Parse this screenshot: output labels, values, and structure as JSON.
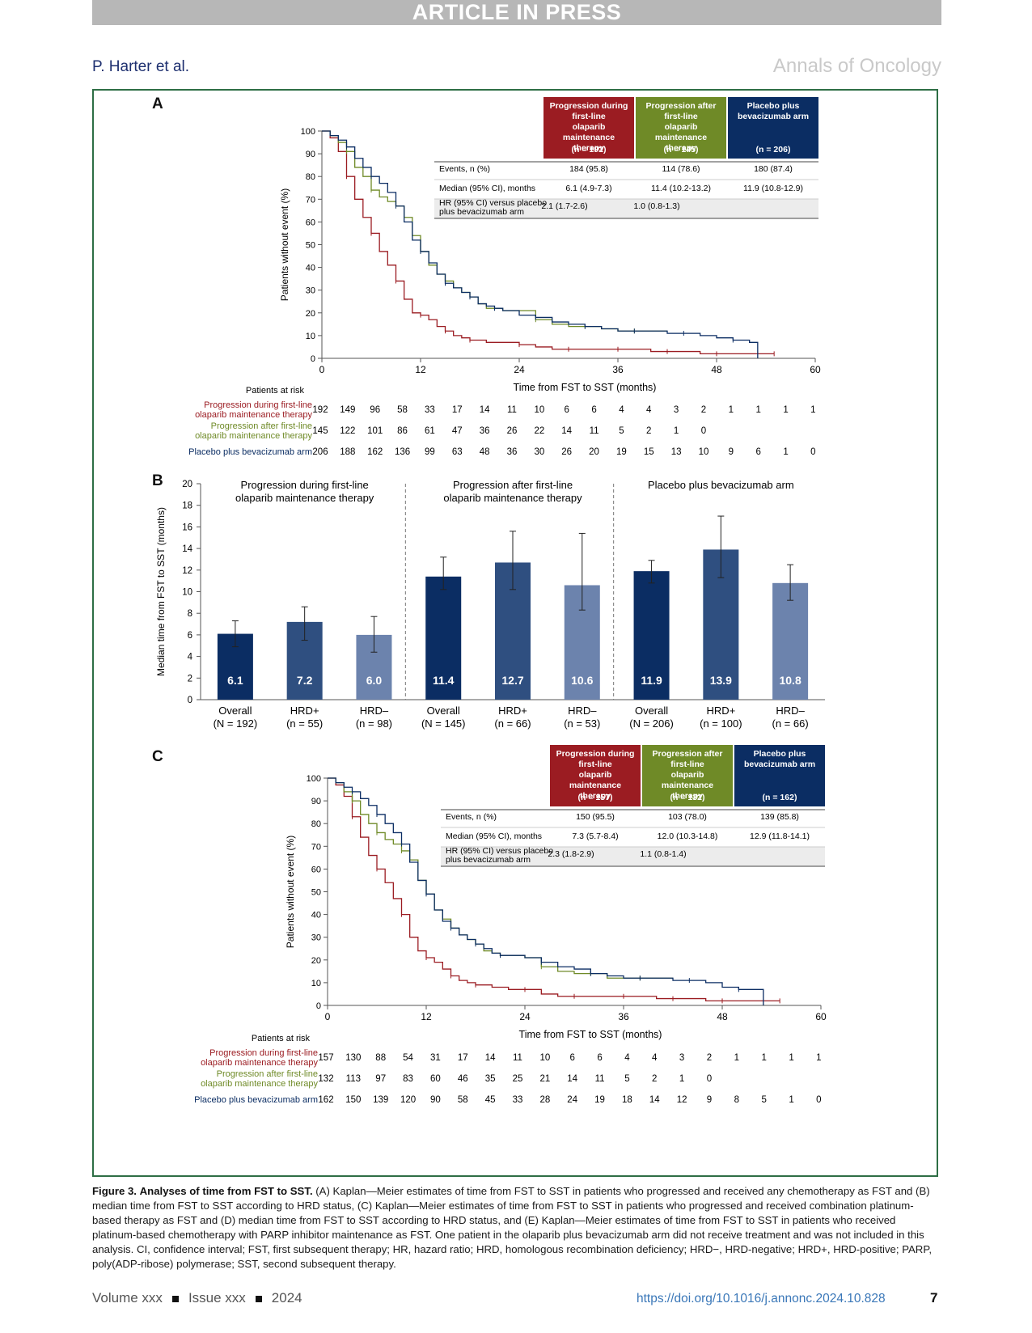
{
  "banner": "ARTICLE IN PRESS",
  "header": {
    "author": "P. Harter et al.",
    "journal": "Annals of Oncology"
  },
  "colors": {
    "red": "#9b1c22",
    "green": "#6f8a27",
    "navy": "#0b2d63",
    "mid": "#2f4f80",
    "light": "#6c83ad"
  },
  "panels": {
    "a": "A",
    "b": "B",
    "c": "C"
  },
  "km_common": {
    "ylabel": "Patients without event (%)",
    "xlabel": "Time from FST to SST (months)",
    "xticks": [
      "0",
      "12",
      "24",
      "36",
      "48",
      "60"
    ],
    "yticks": [
      "0",
      "10",
      "20",
      "30",
      "40",
      "50",
      "60",
      "70",
      "80",
      "90",
      "100"
    ],
    "risk_title": "Patients at risk",
    "row_labels": {
      "ev": "Events, n (%)",
      "med": "Median (95% CI), months",
      "hr": "HR (95% CI) versus placebo plus bevacizumab arm"
    }
  },
  "panel_a": {
    "headers": [
      {
        "title": "Progression during first-line olaparib maintenance therapy",
        "n": "(n = 192)"
      },
      {
        "title": "Progression after first-line olaparib maintenance therapy",
        "n": "(n = 145)"
      },
      {
        "title": "Placebo plus bevacizumab arm",
        "n": "(n = 206)"
      }
    ],
    "events": [
      "184 (95.8)",
      "114 (78.6)",
      "180 (87.4)"
    ],
    "median": [
      "6.1 (4.9-7.3)",
      "11.4 (10.2-13.2)",
      "11.9 (10.8-12.9)"
    ],
    "hr": [
      "2.1 (1.7-2.6)",
      "1.0 (0.8-1.3)",
      ""
    ],
    "risk": [
      {
        "label": [
          "Progression during first-line",
          "olaparib maintenance therapy"
        ],
        "values": [
          "192",
          "149",
          "96",
          "58",
          "33",
          "17",
          "14",
          "11",
          "10",
          "6",
          "6",
          "4",
          "4",
          "3",
          "2",
          "1",
          "1",
          "1",
          "1"
        ]
      },
      {
        "label": [
          "Progression after first-line",
          "olaparib maintenance therapy"
        ],
        "values": [
          "145",
          "122",
          "101",
          "86",
          "61",
          "47",
          "36",
          "26",
          "22",
          "14",
          "11",
          "5",
          "2",
          "1",
          "0"
        ]
      },
      {
        "label": [
          "Placebo plus bevacizumab arm"
        ],
        "values": [
          "206",
          "188",
          "162",
          "136",
          "99",
          "63",
          "48",
          "36",
          "30",
          "26",
          "20",
          "19",
          "15",
          "13",
          "10",
          "9",
          "6",
          "1",
          "0"
        ]
      }
    ]
  },
  "panel_c": {
    "headers": [
      {
        "title": "Progression during first-line olaparib maintenance therapy",
        "n": "(n = 157)"
      },
      {
        "title": "Progression after first-line olaparib maintenance therapy",
        "n": "(n = 132)"
      },
      {
        "title": "Placebo plus bevacizumab arm",
        "n": "(n = 162)"
      }
    ],
    "events": [
      "150 (95.5)",
      "103 (78.0)",
      "139 (85.8)"
    ],
    "median": [
      "7.3 (5.7-8.4)",
      "12.0 (10.3-14.8)",
      "12.9 (11.8-14.1)"
    ],
    "hr": [
      "2.3 (1.8-2.9)",
      "1.1 (0.8-1.4)",
      ""
    ],
    "risk": [
      {
        "label": [
          "Progression during first-line",
          "olaparib maintenance therapy"
        ],
        "values": [
          "157",
          "130",
          "88",
          "54",
          "31",
          "17",
          "14",
          "11",
          "10",
          "6",
          "6",
          "4",
          "4",
          "3",
          "2",
          "1",
          "1",
          "1",
          "1"
        ]
      },
      {
        "label": [
          "Progression after first-line",
          "olaparib maintenance therapy"
        ],
        "values": [
          "132",
          "113",
          "97",
          "83",
          "60",
          "46",
          "35",
          "25",
          "21",
          "14",
          "11",
          "5",
          "2",
          "1",
          "0"
        ]
      },
      {
        "label": [
          "Placebo plus bevacizumab arm"
        ],
        "values": [
          "162",
          "150",
          "139",
          "120",
          "90",
          "58",
          "45",
          "33",
          "28",
          "24",
          "19",
          "18",
          "14",
          "12",
          "9",
          "8",
          "5",
          "1",
          "0"
        ]
      }
    ]
  },
  "chart_data": [
    {
      "type": "line",
      "xlabel": "Time from FST to SST (months)",
      "ylabel": "Patients without event (%)",
      "xlim": [
        0,
        60
      ],
      "ylim": [
        0,
        100
      ],
      "series": [
        {
          "name": "Progression during first-line olaparib maintenance therapy",
          "x": [
            0,
            1,
            2,
            3,
            4,
            5,
            6,
            7,
            8,
            9,
            10,
            11,
            12,
            13,
            14,
            15,
            16,
            17,
            18,
            20,
            22,
            24,
            26,
            28,
            30,
            32,
            34,
            36,
            38,
            40,
            42,
            44,
            46,
            48,
            50,
            52,
            55
          ],
          "y": [
            100,
            97,
            91,
            80,
            70,
            62,
            55,
            47,
            41,
            34,
            26,
            20,
            19,
            17,
            14,
            12,
            10,
            9,
            8,
            7,
            7,
            6,
            5,
            4,
            4,
            4,
            4,
            4,
            4,
            3,
            3,
            3,
            2,
            2,
            2,
            2,
            2
          ]
        },
        {
          "name": "Progression after first-line olaparib maintenance therapy",
          "x": [
            0,
            1,
            2,
            3,
            4,
            5,
            6,
            7,
            8,
            9,
            10,
            11,
            12,
            13,
            14,
            15,
            16,
            17,
            18,
            19,
            20,
            21,
            22,
            24,
            26,
            28,
            30,
            32,
            34,
            36,
            38,
            40,
            42
          ],
          "y": [
            100,
            98,
            95,
            91,
            84,
            80,
            74,
            71,
            69,
            67,
            62,
            54,
            47,
            41,
            37,
            34,
            31,
            29,
            27,
            24,
            22,
            22,
            21,
            21,
            17,
            15,
            14,
            14,
            13,
            12,
            12,
            12,
            12
          ]
        },
        {
          "name": "Placebo plus bevacizumab arm",
          "x": [
            0,
            1,
            2,
            3,
            4,
            5,
            6,
            7,
            8,
            9,
            10,
            11,
            12,
            13,
            14,
            15,
            16,
            17,
            18,
            19,
            20,
            21,
            22,
            24,
            26,
            28,
            30,
            32,
            34,
            36,
            38,
            40,
            42,
            44,
            46,
            48,
            50,
            52,
            53
          ],
          "y": [
            100,
            98,
            96,
            93,
            88,
            84,
            80,
            77,
            73,
            67,
            60,
            52,
            47,
            42,
            37,
            33,
            31,
            29,
            27,
            24,
            23,
            22,
            21,
            19,
            18,
            16,
            15,
            14,
            13,
            12,
            12,
            12,
            11,
            11,
            10,
            9,
            8,
            7,
            0
          ]
        }
      ]
    },
    {
      "type": "bar",
      "ylabel": "Median time from FST to SST (months)",
      "ylim": [
        0,
        20
      ],
      "yticks": [
        "0",
        "2",
        "4",
        "6",
        "8",
        "10",
        "12",
        "14",
        "16",
        "18",
        "20"
      ],
      "groups": [
        "Progression during first-line olaparib maintenance therapy",
        "Progression after first-line olaparib maintenance therapy",
        "Placebo plus bevacizumab arm"
      ],
      "bars": [
        {
          "cat": "Overall",
          "n": "(N = 192)",
          "value": 6.1,
          "label": "6.1",
          "lo": 4.9,
          "hi": 7.3,
          "shade": "navy"
        },
        {
          "cat": "HRD+",
          "n": "(n = 55)",
          "value": 7.2,
          "label": "7.2",
          "lo": 5.5,
          "hi": 8.6,
          "shade": "mid"
        },
        {
          "cat": "HRD–",
          "n": "(n = 98)",
          "value": 6.0,
          "label": "6.0",
          "lo": 4.4,
          "hi": 7.7,
          "shade": "light"
        },
        {
          "cat": "Overall",
          "n": "(N = 145)",
          "value": 11.4,
          "label": "11.4",
          "lo": 10.2,
          "hi": 13.2,
          "shade": "navy"
        },
        {
          "cat": "HRD+",
          "n": "(n = 66)",
          "value": 12.7,
          "label": "12.7",
          "lo": 10.2,
          "hi": 15.6,
          "shade": "mid"
        },
        {
          "cat": "HRD–",
          "n": "(n = 53)",
          "value": 10.6,
          "label": "10.6",
          "lo": 8.3,
          "hi": 15.4,
          "shade": "light"
        },
        {
          "cat": "Overall",
          "n": "(N = 206)",
          "value": 11.9,
          "label": "11.9",
          "lo": 10.8,
          "hi": 12.9,
          "shade": "navy"
        },
        {
          "cat": "HRD+",
          "n": "(n = 100)",
          "value": 13.9,
          "label": "13.9",
          "lo": 11.3,
          "hi": 17.0,
          "shade": "mid"
        },
        {
          "cat": "HRD–",
          "n": "(n = 66)",
          "value": 10.8,
          "label": "10.8",
          "lo": 9.2,
          "hi": 12.5,
          "shade": "light"
        }
      ]
    },
    {
      "type": "line",
      "xlabel": "Time from FST to SST (months)",
      "ylabel": "Patients without event (%)",
      "xlim": [
        0,
        60
      ],
      "ylim": [
        0,
        100
      ],
      "series": [
        {
          "name": "Progression during first-line olaparib maintenance therapy",
          "x": [
            0,
            1,
            2,
            3,
            4,
            5,
            6,
            7,
            8,
            9,
            10,
            11,
            12,
            13,
            14,
            15,
            16,
            17,
            18,
            20,
            22,
            24,
            26,
            28,
            30,
            32,
            34,
            36,
            38,
            40,
            42,
            44,
            46,
            48,
            50,
            52,
            55
          ],
          "y": [
            100,
            97,
            92,
            83,
            74,
            66,
            60,
            54,
            47,
            40,
            30,
            24,
            21,
            19,
            16,
            13,
            11,
            10,
            9,
            8,
            7,
            7,
            5,
            4,
            4,
            4,
            4,
            4,
            4,
            3,
            3,
            3,
            2,
            2,
            2,
            2,
            2
          ]
        },
        {
          "name": "Progression after first-line olaparib maintenance therapy",
          "x": [
            0,
            1,
            2,
            3,
            4,
            5,
            6,
            7,
            8,
            9,
            10,
            11,
            12,
            13,
            14,
            15,
            16,
            17,
            18,
            19,
            20,
            21,
            22,
            24,
            26,
            28,
            30,
            32,
            34,
            36,
            38,
            40,
            42
          ],
          "y": [
            100,
            98,
            94,
            90,
            84,
            80,
            76,
            73,
            71,
            68,
            64,
            55,
            49,
            42,
            38,
            34,
            31,
            29,
            27,
            24,
            23,
            22,
            22,
            21,
            17,
            15,
            14,
            14,
            12,
            12,
            12,
            12,
            12
          ]
        },
        {
          "name": "Placebo plus bevacizumab arm",
          "x": [
            0,
            1,
            2,
            3,
            4,
            5,
            6,
            7,
            8,
            9,
            10,
            11,
            12,
            13,
            14,
            15,
            16,
            17,
            18,
            19,
            20,
            21,
            22,
            24,
            26,
            28,
            30,
            32,
            34,
            36,
            38,
            40,
            42,
            44,
            46,
            48,
            50,
            52,
            53
          ],
          "y": [
            100,
            98,
            96,
            94,
            91,
            88,
            84,
            80,
            76,
            71,
            63,
            55,
            49,
            42,
            37,
            34,
            31,
            29,
            27,
            25,
            23,
            22,
            22,
            21,
            19,
            17,
            16,
            14,
            13,
            12,
            12,
            12,
            11,
            11,
            10,
            8,
            7,
            7,
            0
          ]
        }
      ]
    }
  ],
  "panel_b": {
    "groups": [
      [
        "Progression during first-line",
        "olaparib maintenance therapy"
      ],
      [
        "Progression after first-line",
        "olaparib maintenance therapy"
      ],
      [
        "Placebo plus bevacizumab arm"
      ]
    ]
  },
  "caption": {
    "label": "Figure 3.",
    "title": "Analyses of time from FST to SST.",
    "text": "(A) Kaplan—Meier estimates of time from FST to SST in patients who progressed and received any chemotherapy as FST and (B) median time from FST to SST according to HRD status, (C) Kaplan—Meier estimates of time from FST to SST in patients who progressed and received combination platinum-based therapy as FST and (D) median time from FST to SST according to HRD status, and (E) Kaplan—Meier estimates of time from FST to SST in patients who received platinum-based chemotherapy with PARP inhibitor maintenance as FST. One patient in the olaparib plus bevacizumab arm did not receive treatment and was not included in this analysis. CI, confidence interval; FST, first subsequent therapy; HR, hazard ratio; HRD, homologous recombination deficiency; HRD−, HRD-negative; HRD+, HRD-positive; PARP, poly(ADP-ribose) polymerase; SST, second subsequent therapy."
  },
  "footer": {
    "volume": "Volume xxx",
    "issue": "Issue xxx",
    "year": "2024",
    "doi": "https://doi.org/10.1016/j.annonc.2024.10.828",
    "page": "7"
  }
}
